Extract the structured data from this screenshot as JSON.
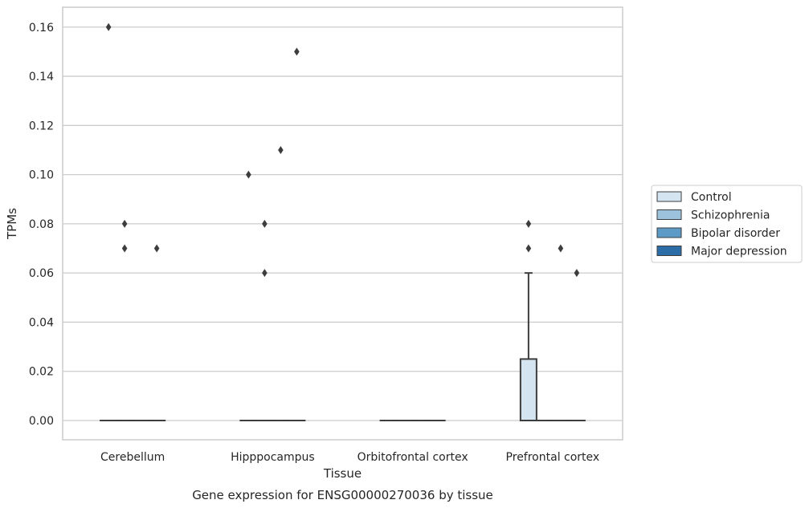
{
  "chart_data": {
    "type": "box",
    "title": "",
    "caption": "Gene expression for ENSG00000270036 by tissue",
    "xlabel": "Tissue",
    "ylabel": "TPMs",
    "ylim": [
      -0.008,
      0.168
    ],
    "yticks": [
      0.0,
      0.02,
      0.04,
      0.06,
      0.08,
      0.1,
      0.12,
      0.14,
      0.16
    ],
    "ytick_labels": [
      "0.00",
      "0.02",
      "0.04",
      "0.06",
      "0.08",
      "0.10",
      "0.12",
      "0.14",
      "0.16"
    ],
    "grid": "horizontal",
    "legend_position": "right",
    "categories": [
      "Cerebellum",
      "Hipppocampus",
      "Orbitofrontal cortex",
      "Prefrontal cortex"
    ],
    "series": [
      {
        "name": "Control",
        "color": "#d4e4f1",
        "boxes": [
          {
            "category": "Cerebellum",
            "q1": 0.0,
            "median": 0.0,
            "q3": 0.0,
            "whisker_low": 0.0,
            "whisker_high": 0.0,
            "outliers": [
              0.16
            ]
          },
          {
            "category": "Hipppocampus",
            "q1": 0.0,
            "median": 0.0,
            "q3": 0.0,
            "whisker_low": 0.0,
            "whisker_high": 0.0,
            "outliers": [
              0.1
            ]
          },
          {
            "category": "Orbitofrontal cortex",
            "q1": 0.0,
            "median": 0.0,
            "q3": 0.0,
            "whisker_low": 0.0,
            "whisker_high": 0.0,
            "outliers": []
          },
          {
            "category": "Prefrontal cortex",
            "q1": 0.0,
            "median": 0.0,
            "q3": 0.025,
            "whisker_low": 0.0,
            "whisker_high": 0.06,
            "outliers": [
              0.07,
              0.08
            ]
          }
        ]
      },
      {
        "name": "Schizophrenia",
        "color": "#9dc2dc",
        "boxes": [
          {
            "category": "Cerebellum",
            "q1": 0.0,
            "median": 0.0,
            "q3": 0.0,
            "whisker_low": 0.0,
            "whisker_high": 0.0,
            "outliers": [
              0.07,
              0.08
            ]
          },
          {
            "category": "Hipppocampus",
            "q1": 0.0,
            "median": 0.0,
            "q3": 0.0,
            "whisker_low": 0.0,
            "whisker_high": 0.0,
            "outliers": [
              0.06,
              0.08
            ]
          },
          {
            "category": "Orbitofrontal cortex",
            "q1": 0.0,
            "median": 0.0,
            "q3": 0.0,
            "whisker_low": 0.0,
            "whisker_high": 0.0,
            "outliers": []
          },
          {
            "category": "Prefrontal cortex",
            "q1": 0.0,
            "median": 0.0,
            "q3": 0.0,
            "whisker_low": 0.0,
            "whisker_high": 0.0,
            "outliers": []
          }
        ]
      },
      {
        "name": "Bipolar disorder",
        "color": "#5c9ac7",
        "boxes": [
          {
            "category": "Cerebellum",
            "q1": 0.0,
            "median": 0.0,
            "q3": 0.0,
            "whisker_low": 0.0,
            "whisker_high": 0.0,
            "outliers": []
          },
          {
            "category": "Hipppocampus",
            "q1": 0.0,
            "median": 0.0,
            "q3": 0.0,
            "whisker_low": 0.0,
            "whisker_high": 0.0,
            "outliers": [
              0.11
            ]
          },
          {
            "category": "Orbitofrontal cortex",
            "q1": 0.0,
            "median": 0.0,
            "q3": 0.0,
            "whisker_low": 0.0,
            "whisker_high": 0.0,
            "outliers": []
          },
          {
            "category": "Prefrontal cortex",
            "q1": 0.0,
            "median": 0.0,
            "q3": 0.0,
            "whisker_low": 0.0,
            "whisker_high": 0.0,
            "outliers": [
              0.07
            ]
          }
        ]
      },
      {
        "name": "Major depression",
        "color": "#2c6da8",
        "boxes": [
          {
            "category": "Cerebellum",
            "q1": 0.0,
            "median": 0.0,
            "q3": 0.0,
            "whisker_low": 0.0,
            "whisker_high": 0.0,
            "outliers": [
              0.07
            ]
          },
          {
            "category": "Hipppocampus",
            "q1": 0.0,
            "median": 0.0,
            "q3": 0.0,
            "whisker_low": 0.0,
            "whisker_high": 0.0,
            "outliers": [
              0.15
            ]
          },
          {
            "category": "Orbitofrontal cortex",
            "q1": 0.0,
            "median": 0.0,
            "q3": 0.0,
            "whisker_low": 0.0,
            "whisker_high": 0.0,
            "outliers": []
          },
          {
            "category": "Prefrontal cortex",
            "q1": 0.0,
            "median": 0.0,
            "q3": 0.0,
            "whisker_low": 0.0,
            "whisker_high": 0.0,
            "outliers": [
              0.06
            ]
          }
        ]
      }
    ],
    "colors": {
      "grid": "#cccccc",
      "frame": "#cccccc",
      "box_edge": "#3d3d3d",
      "outlier": "#3d3d3d",
      "legend_border": "#cccccc"
    }
  }
}
